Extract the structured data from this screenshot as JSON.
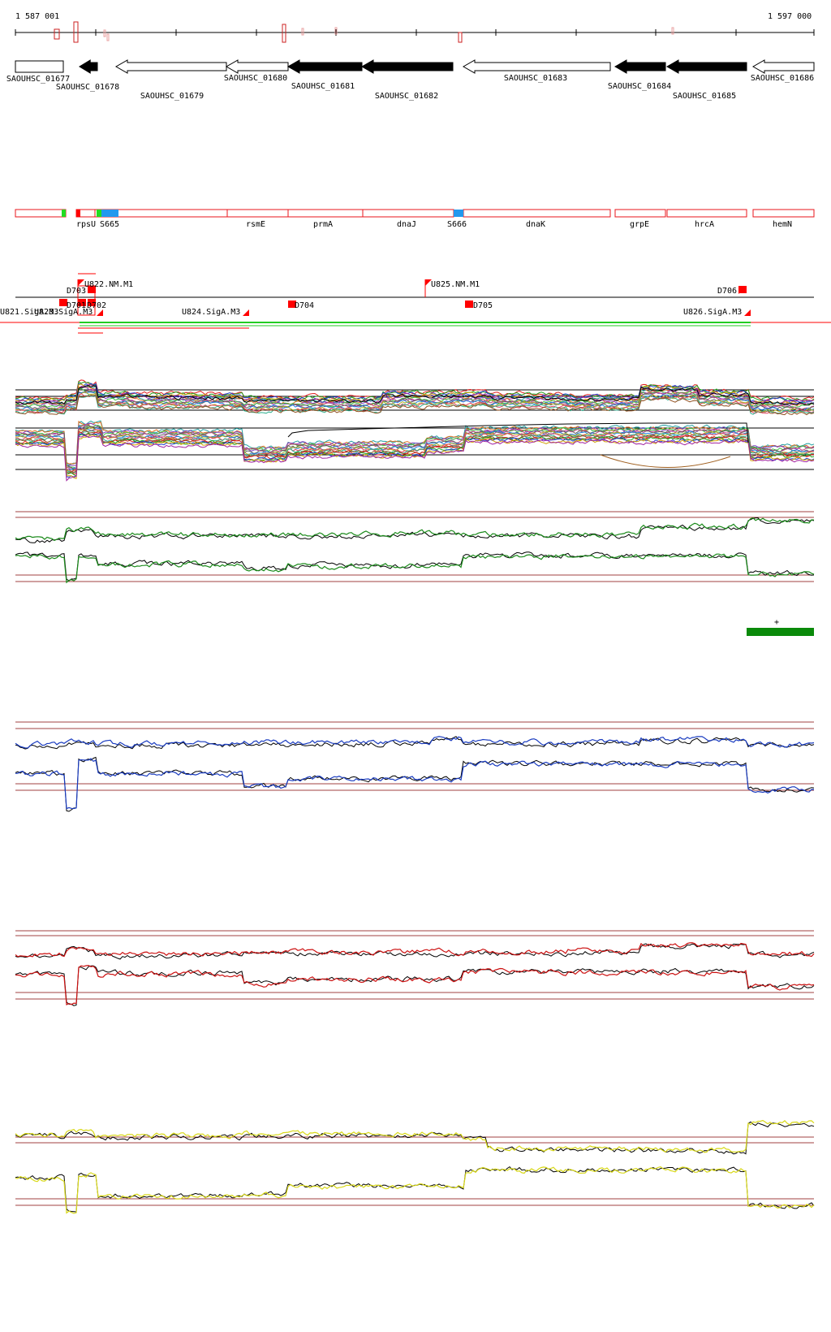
{
  "ruler": {
    "start_label": "1 587 001",
    "end_label": "1 597 000"
  },
  "genes": [
    {
      "id": "SAOUHSC_01677",
      "label": "SAOUHSC_01677",
      "strand": "+",
      "fill": "white"
    },
    {
      "id": "SAOUHSC_01678",
      "label": "SAOUHSC_01678",
      "strand": "-",
      "fill": "black"
    },
    {
      "id": "SAOUHSC_01679",
      "label": "SAOUHSC_01679",
      "strand": "-",
      "fill": "white"
    },
    {
      "id": "SAOUHSC_01680",
      "label": "SAOUHSC_01680",
      "strand": "-",
      "fill": "white"
    },
    {
      "id": "SAOUHSC_01681",
      "label": "SAOUHSC_01681",
      "strand": "-",
      "fill": "black"
    },
    {
      "id": "SAOUHSC_01682",
      "label": "SAOUHSC_01682",
      "strand": "-",
      "fill": "black"
    },
    {
      "id": "SAOUHSC_01683",
      "label": "SAOUHSC_01683",
      "strand": "-",
      "fill": "white"
    },
    {
      "id": "SAOUHSC_01684",
      "label": "SAOUHSC_01684",
      "strand": "-",
      "fill": "black"
    },
    {
      "id": "SAOUHSC_01685",
      "label": "SAOUHSC_01685",
      "strand": "-",
      "fill": "black"
    },
    {
      "id": "SAOUHSC_01686",
      "label": "SAOUHSC_01686",
      "strand": "-",
      "fill": "white"
    }
  ],
  "features": [
    {
      "label": "rpsU"
    },
    {
      "label": "S665"
    },
    {
      "label": "rsmE"
    },
    {
      "label": "prmA"
    },
    {
      "label": "dnaJ"
    },
    {
      "label": "S666"
    },
    {
      "label": "dnaK"
    },
    {
      "label": "grpE"
    },
    {
      "label": "hrcA"
    },
    {
      "label": "hemN"
    }
  ],
  "segments_above": [
    {
      "label": "U822.NM.M1"
    },
    {
      "label": "D703"
    },
    {
      "label": "U825.NM.M1"
    },
    {
      "label": "D706"
    }
  ],
  "segments_below": [
    {
      "label": "U821.SigA.M3"
    },
    {
      "label": "U823.SigA.M3"
    },
    {
      "label": "D701"
    },
    {
      "label": "D702"
    },
    {
      "label": "U824.SigA.M3"
    },
    {
      "label": "D704"
    },
    {
      "label": "D705"
    },
    {
      "label": "U826.SigA.M3"
    }
  ],
  "strand_marker": "+",
  "colors": {
    "feature_outline": "#e8151b",
    "feature_green": "#22dd22",
    "feature_blue": "#2299ee",
    "segment_red": "#ff0000",
    "track_green": "#1a8a1a",
    "track_blue": "#1a3cc0",
    "track_red": "#cc1111",
    "track_yellow": "#d8d818",
    "reference_line": "#a04040",
    "block_green": "#0a8a0a",
    "intergenic_mark": "#cc2222"
  }
}
